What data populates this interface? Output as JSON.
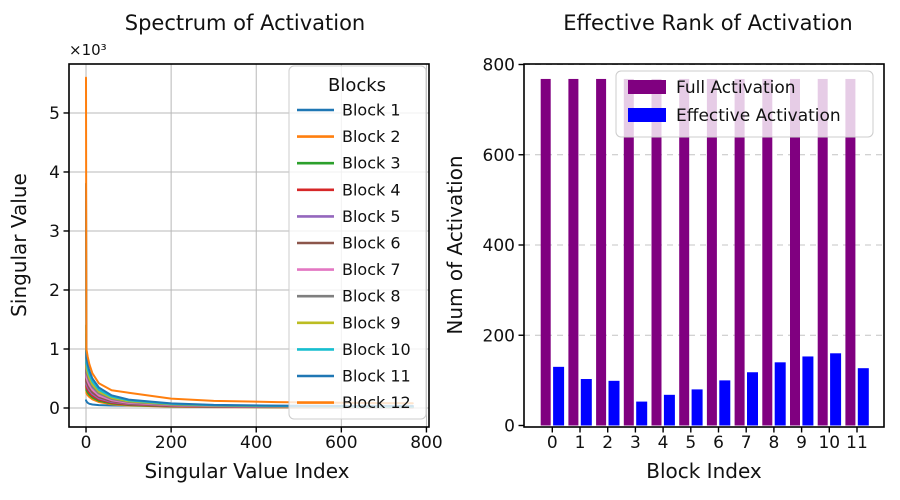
{
  "figure_title": "Activation spectrum and effective rank figure",
  "chart_data": [
    {
      "type": "line",
      "title": "Spectrum of Activation",
      "xlabel": "Singular Value Index",
      "ylabel": "Singular Value",
      "offset_text": "×10³",
      "legend_title": "Blocks",
      "legend_position": "upper right",
      "grid": "solid, both axes",
      "xlim": [
        -40,
        806
      ],
      "ylim": [
        -322,
        5830
      ],
      "xticks": [
        0,
        200,
        400,
        600,
        800
      ],
      "yticks": [
        0,
        1000,
        2000,
        3000,
        4000,
        5000
      ],
      "ytick_labels": [
        "0",
        "1",
        "2",
        "3",
        "4",
        "5"
      ],
      "x": [
        0,
        1,
        2,
        4,
        8,
        15,
        30,
        60,
        100,
        200,
        300,
        450,
        600,
        768
      ],
      "series": [
        {
          "name": "Block 1",
          "color": "#1f77b4",
          "values": [
            130,
            114,
            103,
            88,
            72,
            59,
            49,
            42,
            40,
            37,
            37,
            36,
            36,
            36
          ]
        },
        {
          "name": "Block 2",
          "color": "#ff7f0e",
          "values": [
            600,
            250,
            238,
            217,
            185,
            147,
            102,
            63,
            42,
            23,
            16,
            11,
            8,
            6
          ]
        },
        {
          "name": "Block 3",
          "color": "#2ca02c",
          "values": [
            700,
            300,
            286,
            261,
            222,
            176,
            122,
            76,
            50,
            27,
            19,
            13,
            10,
            8
          ]
        },
        {
          "name": "Block 4",
          "color": "#d62728",
          "values": [
            800,
            350,
            333,
            304,
            259,
            206,
            143,
            89,
            59,
            32,
            22,
            15,
            11,
            9
          ]
        },
        {
          "name": "Block 5",
          "color": "#9467bd",
          "values": [
            900,
            400,
            381,
            348,
            296,
            235,
            163,
            101,
            67,
            37,
            25,
            17,
            13,
            10
          ]
        },
        {
          "name": "Block 6",
          "color": "#8c564b",
          "values": [
            1000,
            450,
            428,
            391,
            333,
            265,
            184,
            114,
            76,
            41,
            28,
            19,
            15,
            11
          ]
        },
        {
          "name": "Block 7",
          "color": "#e377c2",
          "values": [
            1150,
            520,
            495,
            452,
            385,
            306,
            212,
            132,
            87,
            47,
            33,
            22,
            17,
            13
          ]
        },
        {
          "name": "Block 8",
          "color": "#7f7f7f",
          "values": [
            1250,
            600,
            571,
            522,
            444,
            353,
            245,
            152,
            101,
            55,
            38,
            26,
            19,
            15
          ]
        },
        {
          "name": "Block 9",
          "color": "#bcbd22",
          "values": [
            1400,
            680,
            647,
            591,
            504,
            400,
            277,
            172,
            114,
            62,
            43,
            29,
            22,
            17
          ]
        },
        {
          "name": "Block 10",
          "color": "#17becf",
          "values": [
            3500,
            760,
            724,
            661,
            563,
            447,
            310,
            192,
            128,
            69,
            48,
            34,
            27,
            22
          ]
        },
        {
          "name": "Block 11",
          "color": "#1f77b4",
          "values": [
            3800,
            850,
            810,
            739,
            630,
            500,
            347,
            215,
            143,
            78,
            53,
            40,
            34,
            30
          ]
        },
        {
          "name": "Block 12",
          "color": "#ff7f0e",
          "values": [
            5600,
            1000,
            952,
            870,
            741,
            588,
            420,
            300,
            260,
            160,
            120,
            100,
            88,
            80
          ]
        }
      ]
    },
    {
      "type": "bar",
      "title": "Effective Rank of Activation",
      "xlabel": "Block Index",
      "ylabel": "Num of Activation",
      "legend_position": "upper center",
      "grid": "dashed, horizontal only",
      "categories": [
        "0",
        "1",
        "2",
        "3",
        "4",
        "5",
        "6",
        "7",
        "8",
        "9",
        "10",
        "11"
      ],
      "ylim": [
        0,
        800
      ],
      "yticks": [
        0,
        200,
        400,
        600,
        800
      ],
      "series": [
        {
          "name": "Full Activation",
          "color": "#800080",
          "values": [
            768,
            768,
            768,
            768,
            768,
            768,
            768,
            768,
            768,
            768,
            768,
            768
          ]
        },
        {
          "name": "Effective Activation",
          "color": "#0000ff",
          "values": [
            130,
            103,
            99,
            53,
            68,
            80,
            100,
            118,
            140,
            153,
            160,
            127
          ]
        }
      ]
    }
  ]
}
